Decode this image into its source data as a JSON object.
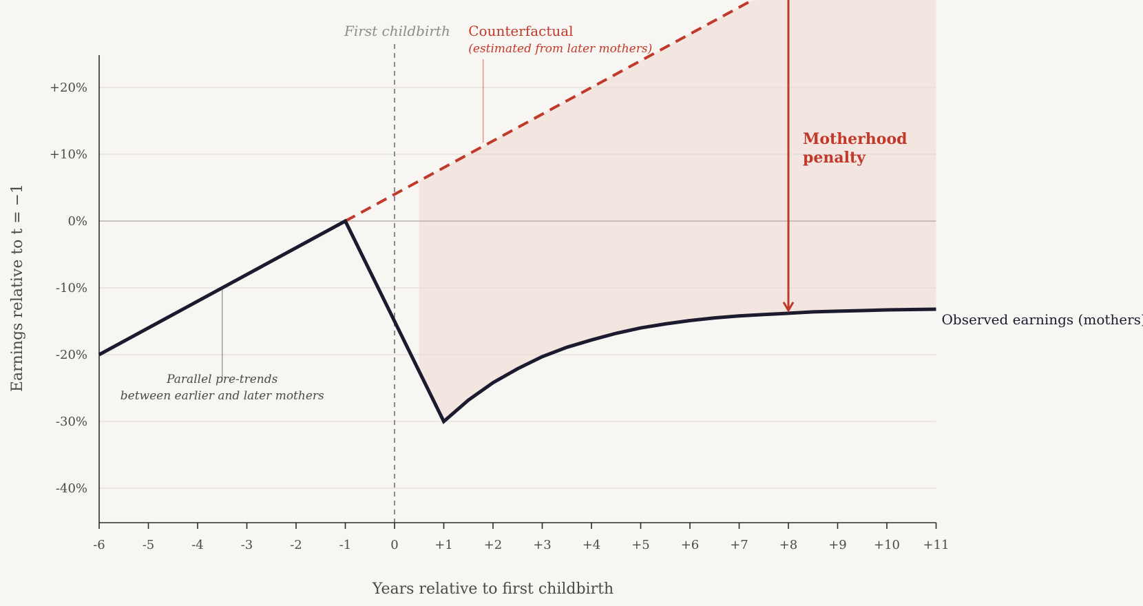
{
  "chart_data": {
    "type": "line",
    "xlabel": "Years relative to first childbirth",
    "ylabel": "Earnings relative to t = −1",
    "xlim": [
      -6,
      11
    ],
    "ylim": [
      -45,
      25
    ],
    "x_ticks": [
      -6,
      -5,
      -4,
      -3,
      -2,
      -1,
      0,
      1,
      2,
      3,
      4,
      5,
      6,
      7,
      8,
      9,
      10,
      11
    ],
    "x_tick_labels": [
      "-6",
      "-5",
      "-4",
      "-3",
      "-2",
      "-1",
      "0",
      "+1",
      "+2",
      "+3",
      "+4",
      "+5",
      "+6",
      "+7",
      "+8",
      "+9",
      "+10",
      "+11"
    ],
    "y_ticks": [
      20,
      10,
      0,
      -10,
      -20,
      -30,
      -40
    ],
    "y_tick_labels": [
      "+20%",
      "+10%",
      "0%",
      "-10%",
      "-20%",
      "-30%",
      "-40%"
    ],
    "grid": "horizontal",
    "event": {
      "x": 0,
      "label": "First childbirth"
    },
    "series": [
      {
        "name": "Observed earnings (mothers)",
        "color": "#1b1a2e",
        "style": "solid",
        "x": [
          -6,
          -1,
          1,
          1.5,
          2,
          2.5,
          3,
          3.5,
          4,
          4.5,
          5,
          5.5,
          6,
          6.5,
          7,
          7.5,
          8,
          8.5,
          9,
          9.5,
          10,
          10.5,
          11
        ],
        "y": [
          -20,
          0,
          -30,
          -26.8,
          -24.2,
          -22.1,
          -20.3,
          -18.9,
          -17.8,
          -16.8,
          -16.0,
          -15.4,
          -14.9,
          -14.5,
          -14.2,
          -14.0,
          -13.8,
          -13.6,
          -13.5,
          -13.4,
          -13.3,
          -13.25,
          -13.2
        ]
      },
      {
        "name": "Counterfactual",
        "color": "#c0392b",
        "style": "dashed",
        "x": [
          -1,
          11
        ],
        "y": [
          0,
          48
        ]
      }
    ],
    "shaded_region": {
      "x_from": 0.5,
      "x_to": 11,
      "color": "#f3e5df"
    },
    "annotations": {
      "counterfactual_title": "Counterfactual",
      "counterfactual_sub": "(estimated from later mothers)",
      "pretrend_line1": "Parallel pre-trends",
      "pretrend_line2": "between earlier and later mothers",
      "penalty_line1": "Motherhood",
      "penalty_line2": "penalty",
      "penalty_x": 8,
      "observed_label": "Observed earnings (mothers)"
    }
  }
}
